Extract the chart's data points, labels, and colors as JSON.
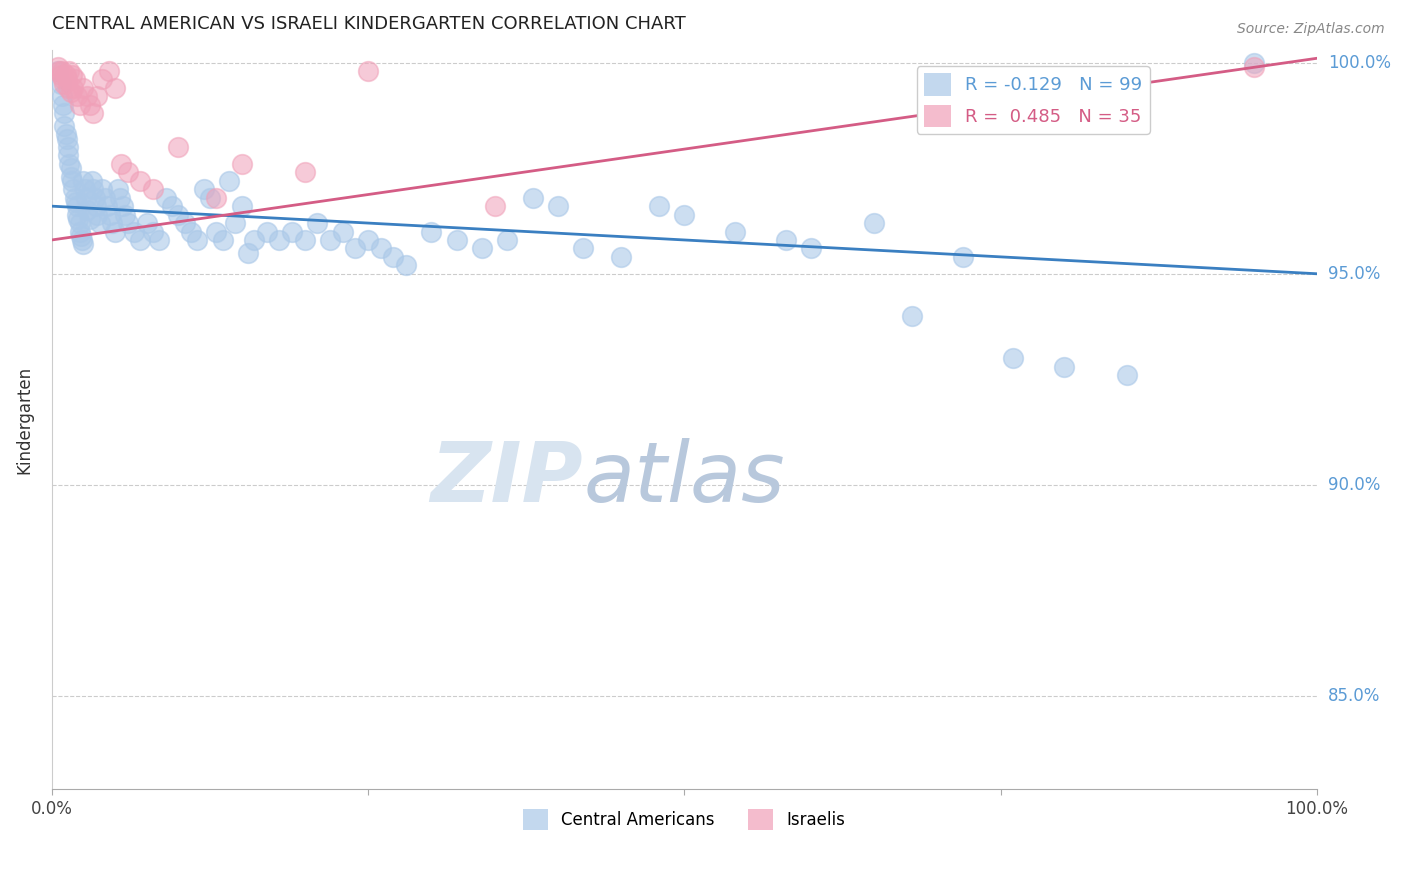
{
  "title": "CENTRAL AMERICAN VS ISRAELI KINDERGARTEN CORRELATION CHART",
  "source": "Source: ZipAtlas.com",
  "ylabel": "Kindergarten",
  "xlim": [
    0,
    1
  ],
  "ylim": [
    0.828,
    1.003
  ],
  "yticks": [
    0.85,
    0.9,
    0.95,
    1.0
  ],
  "ytick_labels": [
    "85.0%",
    "90.0%",
    "95.0%",
    "100.0%"
  ],
  "xticks": [
    0.0,
    0.25,
    0.5,
    0.75,
    1.0
  ],
  "xtick_labels": [
    "0.0%",
    "",
    "",
    "",
    "100.0%"
  ],
  "legend_blue_label": "R = -0.129   N = 99",
  "legend_pink_label": "R =  0.485   N = 35",
  "ca_legend": "Central Americans",
  "is_legend": "Israelis",
  "blue_color": "#aac8e8",
  "pink_color": "#f0a0b8",
  "blue_line_color": "#3a7fc1",
  "pink_line_color": "#d45c85",
  "watermark_zip": "ZIP",
  "watermark_atlas": "atlas",
  "watermark_color": "#d8e4f0",
  "watermark_atlas_color": "#b8c8dc",
  "blue_trend_start_y": 0.966,
  "blue_trend_end_y": 0.95,
  "pink_trend_start_x": 0.0,
  "pink_trend_start_y": 0.958,
  "pink_trend_end_x": 1.0,
  "pink_trend_end_y": 1.001,
  "ca_points": [
    [
      0.005,
      0.998
    ],
    [
      0.007,
      0.995
    ],
    [
      0.008,
      0.992
    ],
    [
      0.009,
      0.99
    ],
    [
      0.01,
      0.988
    ],
    [
      0.01,
      0.985
    ],
    [
      0.011,
      0.983
    ],
    [
      0.012,
      0.982
    ],
    [
      0.013,
      0.98
    ],
    [
      0.013,
      0.978
    ],
    [
      0.014,
      0.976
    ],
    [
      0.015,
      0.975
    ],
    [
      0.015,
      0.973
    ],
    [
      0.016,
      0.972
    ],
    [
      0.017,
      0.97
    ],
    [
      0.018,
      0.968
    ],
    [
      0.019,
      0.967
    ],
    [
      0.02,
      0.966
    ],
    [
      0.02,
      0.964
    ],
    [
      0.021,
      0.963
    ],
    [
      0.022,
      0.962
    ],
    [
      0.022,
      0.96
    ],
    [
      0.023,
      0.959
    ],
    [
      0.024,
      0.958
    ],
    [
      0.025,
      0.957
    ],
    [
      0.025,
      0.972
    ],
    [
      0.026,
      0.97
    ],
    [
      0.027,
      0.968
    ],
    [
      0.028,
      0.965
    ],
    [
      0.03,
      0.963
    ],
    [
      0.032,
      0.972
    ],
    [
      0.033,
      0.97
    ],
    [
      0.034,
      0.968
    ],
    [
      0.035,
      0.966
    ],
    [
      0.036,
      0.964
    ],
    [
      0.038,
      0.962
    ],
    [
      0.04,
      0.97
    ],
    [
      0.042,
      0.968
    ],
    [
      0.044,
      0.966
    ],
    [
      0.046,
      0.964
    ],
    [
      0.048,
      0.962
    ],
    [
      0.05,
      0.96
    ],
    [
      0.052,
      0.97
    ],
    [
      0.054,
      0.968
    ],
    [
      0.056,
      0.966
    ],
    [
      0.058,
      0.964
    ],
    [
      0.06,
      0.962
    ],
    [
      0.065,
      0.96
    ],
    [
      0.07,
      0.958
    ],
    [
      0.075,
      0.962
    ],
    [
      0.08,
      0.96
    ],
    [
      0.085,
      0.958
    ],
    [
      0.09,
      0.968
    ],
    [
      0.095,
      0.966
    ],
    [
      0.1,
      0.964
    ],
    [
      0.105,
      0.962
    ],
    [
      0.11,
      0.96
    ],
    [
      0.115,
      0.958
    ],
    [
      0.12,
      0.97
    ],
    [
      0.125,
      0.968
    ],
    [
      0.13,
      0.96
    ],
    [
      0.135,
      0.958
    ],
    [
      0.14,
      0.972
    ],
    [
      0.145,
      0.962
    ],
    [
      0.15,
      0.966
    ],
    [
      0.155,
      0.955
    ],
    [
      0.16,
      0.958
    ],
    [
      0.17,
      0.96
    ],
    [
      0.18,
      0.958
    ],
    [
      0.19,
      0.96
    ],
    [
      0.2,
      0.958
    ],
    [
      0.21,
      0.962
    ],
    [
      0.22,
      0.958
    ],
    [
      0.23,
      0.96
    ],
    [
      0.24,
      0.956
    ],
    [
      0.25,
      0.958
    ],
    [
      0.26,
      0.956
    ],
    [
      0.27,
      0.954
    ],
    [
      0.28,
      0.952
    ],
    [
      0.3,
      0.96
    ],
    [
      0.32,
      0.958
    ],
    [
      0.34,
      0.956
    ],
    [
      0.36,
      0.958
    ],
    [
      0.38,
      0.968
    ],
    [
      0.4,
      0.966
    ],
    [
      0.42,
      0.956
    ],
    [
      0.45,
      0.954
    ],
    [
      0.48,
      0.966
    ],
    [
      0.5,
      0.964
    ],
    [
      0.54,
      0.96
    ],
    [
      0.58,
      0.958
    ],
    [
      0.6,
      0.956
    ],
    [
      0.65,
      0.962
    ],
    [
      0.68,
      0.94
    ],
    [
      0.72,
      0.954
    ],
    [
      0.76,
      0.93
    ],
    [
      0.8,
      0.928
    ],
    [
      0.85,
      0.926
    ],
    [
      0.95,
      1.0
    ]
  ],
  "is_points": [
    [
      0.005,
      0.999
    ],
    [
      0.006,
      0.998
    ],
    [
      0.007,
      0.997
    ],
    [
      0.008,
      0.998
    ],
    [
      0.009,
      0.996
    ],
    [
      0.01,
      0.995
    ],
    [
      0.011,
      0.997
    ],
    [
      0.012,
      0.996
    ],
    [
      0.013,
      0.994
    ],
    [
      0.014,
      0.998
    ],
    [
      0.015,
      0.993
    ],
    [
      0.016,
      0.997
    ],
    [
      0.017,
      0.994
    ],
    [
      0.018,
      0.996
    ],
    [
      0.02,
      0.992
    ],
    [
      0.022,
      0.99
    ],
    [
      0.025,
      0.994
    ],
    [
      0.028,
      0.992
    ],
    [
      0.03,
      0.99
    ],
    [
      0.033,
      0.988
    ],
    [
      0.036,
      0.992
    ],
    [
      0.04,
      0.996
    ],
    [
      0.045,
      0.998
    ],
    [
      0.05,
      0.994
    ],
    [
      0.055,
      0.976
    ],
    [
      0.06,
      0.974
    ],
    [
      0.07,
      0.972
    ],
    [
      0.08,
      0.97
    ],
    [
      0.1,
      0.98
    ],
    [
      0.13,
      0.968
    ],
    [
      0.15,
      0.976
    ],
    [
      0.2,
      0.974
    ],
    [
      0.25,
      0.998
    ],
    [
      0.35,
      0.966
    ],
    [
      0.95,
      0.999
    ]
  ]
}
